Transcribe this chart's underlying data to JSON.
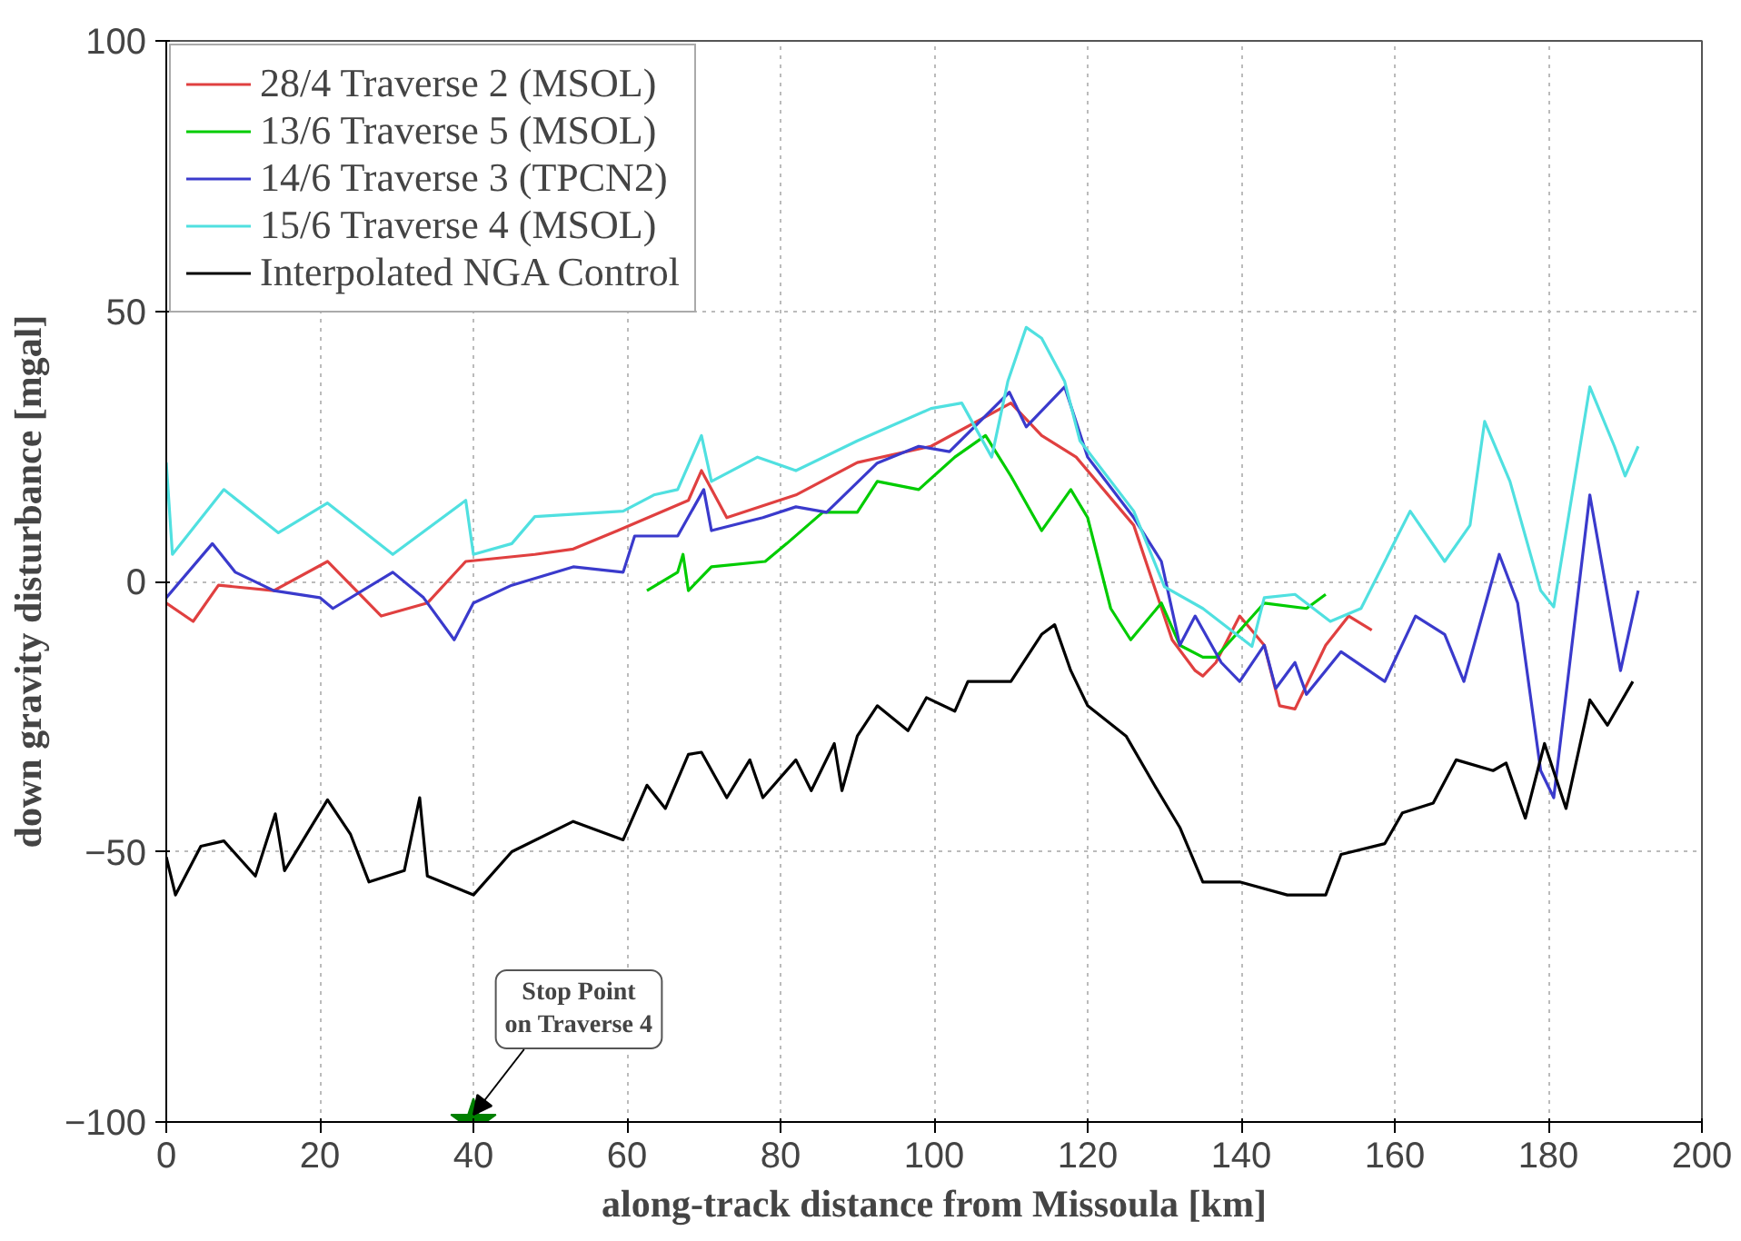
{
  "chart_data": {
    "type": "line",
    "xlabel": "along-track distance from Missoula [km]",
    "ylabel": "down gravity disturbance [mgal]",
    "xlim": [
      0,
      200
    ],
    "ylim": [
      -100,
      100
    ],
    "xticks": [
      0,
      20,
      40,
      60,
      80,
      100,
      120,
      140,
      160,
      180,
      200
    ],
    "yticks": [
      -100,
      -50,
      0,
      50,
      100
    ],
    "grid": true,
    "legend": "top left",
    "line_style": "solid",
    "annotations": [
      {
        "text": "Stop Point\non Traverse 4",
        "x": 40,
        "y": -100
      }
    ],
    "series": [
      {
        "name": "28/4 Traverse 2 (MSOL)",
        "color": "#e04040",
        "x": [
          0,
          3.5,
          6.8,
          14,
          21,
          28,
          34,
          39,
          48,
          53,
          58.8,
          68,
          69.7,
          73,
          82,
          90,
          99.6,
          110,
          114,
          118.5,
          126,
          131,
          134,
          135,
          136.7,
          139.8,
          143,
          145,
          147,
          151,
          154,
          157
        ],
        "values": [
          -4,
          -7.4,
          -0.7,
          -1.7,
          3.7,
          -6.4,
          -4,
          3.7,
          5,
          6,
          9.4,
          15,
          20.5,
          11.8,
          16,
          22,
          25,
          33,
          27,
          23,
          10.4,
          -10.8,
          -16.5,
          -17.5,
          -15,
          -6.4,
          -11.8,
          -23,
          -23.6,
          -11.8,
          -6.4,
          -9
        ]
      },
      {
        "name": "13/6 Traverse 5 (MSOL)",
        "color": "#00cc00",
        "x": [
          62.6,
          66.6,
          67.3,
          68,
          71,
          78,
          80.8,
          85.5,
          90,
          92.6,
          98,
          102.7,
          106.7,
          110,
          114,
          117.8,
          120,
          123,
          125.6,
          129.6,
          132,
          135,
          136.7,
          143,
          148.5,
          151
        ],
        "values": [
          -1.7,
          1.7,
          5,
          -1.7,
          2.7,
          3.7,
          7,
          12.8,
          12.8,
          18.5,
          17,
          23,
          27,
          19.5,
          9.4,
          17,
          11.8,
          -5,
          -10.8,
          -4,
          -11.8,
          -14,
          -14,
          -4,
          -5,
          -2.4
        ]
      },
      {
        "name": "14/6 Traverse 3 (TPCN2)",
        "color": "#3a3acc",
        "x": [
          0,
          6,
          9,
          14,
          20,
          21.7,
          29.5,
          33.5,
          37.5,
          40,
          45,
          53,
          59.5,
          61,
          66.6,
          70,
          71,
          77.7,
          82,
          86,
          92.6,
          98,
          102,
          109.8,
          112,
          117,
          120,
          126,
          129.6,
          132,
          134,
          137.4,
          139.8,
          143,
          144.5,
          147,
          148.5,
          153,
          158.7,
          162.7,
          166.5,
          169,
          173.6,
          176,
          179,
          180.7,
          185.4,
          189.4,
          191.7
        ],
        "values": [
          -3,
          7,
          1.7,
          -1.7,
          -3,
          -5,
          1.7,
          -3,
          -10.8,
          -4,
          -0.7,
          2.7,
          1.7,
          8.4,
          8.4,
          17,
          9.4,
          11.8,
          13.8,
          12.8,
          21.9,
          25,
          24,
          35,
          28.6,
          36,
          23,
          11.8,
          3.7,
          -11.8,
          -6.4,
          -15,
          -18.5,
          -11.8,
          -19.8,
          -15,
          -20.9,
          -13,
          -18.5,
          -6.4,
          -9.8,
          -18.5,
          5,
          -4,
          -35,
          -40,
          16,
          -16.5,
          -1.7
        ]
      },
      {
        "name": "15/6 Traverse 4 (MSOL)",
        "color": "#50e0e0",
        "x": [
          0,
          0.8,
          7.5,
          14.6,
          21,
          29.5,
          39,
          40,
          45,
          48,
          59.5,
          63.5,
          66.6,
          69.7,
          71,
          77,
          82,
          90,
          99.6,
          103.6,
          107.5,
          109.6,
          112,
          114,
          117,
          119,
          126,
          130,
          135,
          141.4,
          143,
          147,
          151.6,
          155.6,
          162,
          166.5,
          169.8,
          171.7,
          175,
          179,
          180.7,
          185.4,
          188.6,
          190,
          191.7
        ],
        "values": [
          22,
          5,
          17,
          9,
          14.5,
          5,
          15,
          5,
          7,
          12,
          13,
          16,
          17,
          27,
          18.5,
          23,
          20.5,
          26,
          32,
          33,
          23,
          37,
          47,
          45,
          37,
          26,
          13,
          -1,
          -5,
          -12,
          -3,
          -2.4,
          -7.4,
          -5,
          13,
          3.7,
          10.4,
          29.6,
          18.5,
          -1.7,
          -4.7,
          36,
          25,
          19.5,
          25
        ]
      },
      {
        "name": "Interpolated NGA Control",
        "color": "#000000",
        "x": [
          0,
          1.2,
          4.5,
          7.5,
          11.6,
          14.2,
          15.4,
          21,
          24,
          26.4,
          31,
          33,
          34,
          40,
          45,
          53,
          59.5,
          62.6,
          65,
          68,
          69.7,
          73,
          76,
          77.7,
          82,
          84,
          87,
          88,
          90,
          92.6,
          96.6,
          99,
          102.7,
          104.4,
          110,
          114,
          115.7,
          117.8,
          120,
          125,
          128.7,
          132,
          135,
          139.8,
          146,
          151,
          153,
          158.7,
          161,
          165,
          168,
          172.8,
          174.5,
          177,
          179.5,
          182.3,
          185.4,
          187.7,
          191
        ],
        "values": [
          -51,
          -58,
          -49,
          -48,
          -54.5,
          -43,
          -53.5,
          -40.4,
          -46.8,
          -55.6,
          -53.5,
          -40,
          -54.5,
          -58,
          -50,
          -44.4,
          -47.8,
          -37.7,
          -42,
          -32,
          -31.6,
          -40,
          -33,
          -40,
          -33,
          -38.7,
          -30,
          -38.7,
          -28.6,
          -23,
          -27.6,
          -21.5,
          -24,
          -18.5,
          -18.5,
          -9.8,
          -8,
          -16.5,
          -23,
          -28.6,
          -37.7,
          -45.5,
          -55.6,
          -55.6,
          -58,
          -58,
          -50.5,
          -48.5,
          -42.8,
          -41,
          -33,
          -35,
          -33.6,
          -43.8,
          -30,
          -42,
          -21.9,
          -26.6,
          -18.5
        ]
      },
      {
        "type": "scatter",
        "marker": "star",
        "color": "#008000",
        "x": [
          40
        ],
        "values": [
          -100
        ]
      }
    ]
  }
}
